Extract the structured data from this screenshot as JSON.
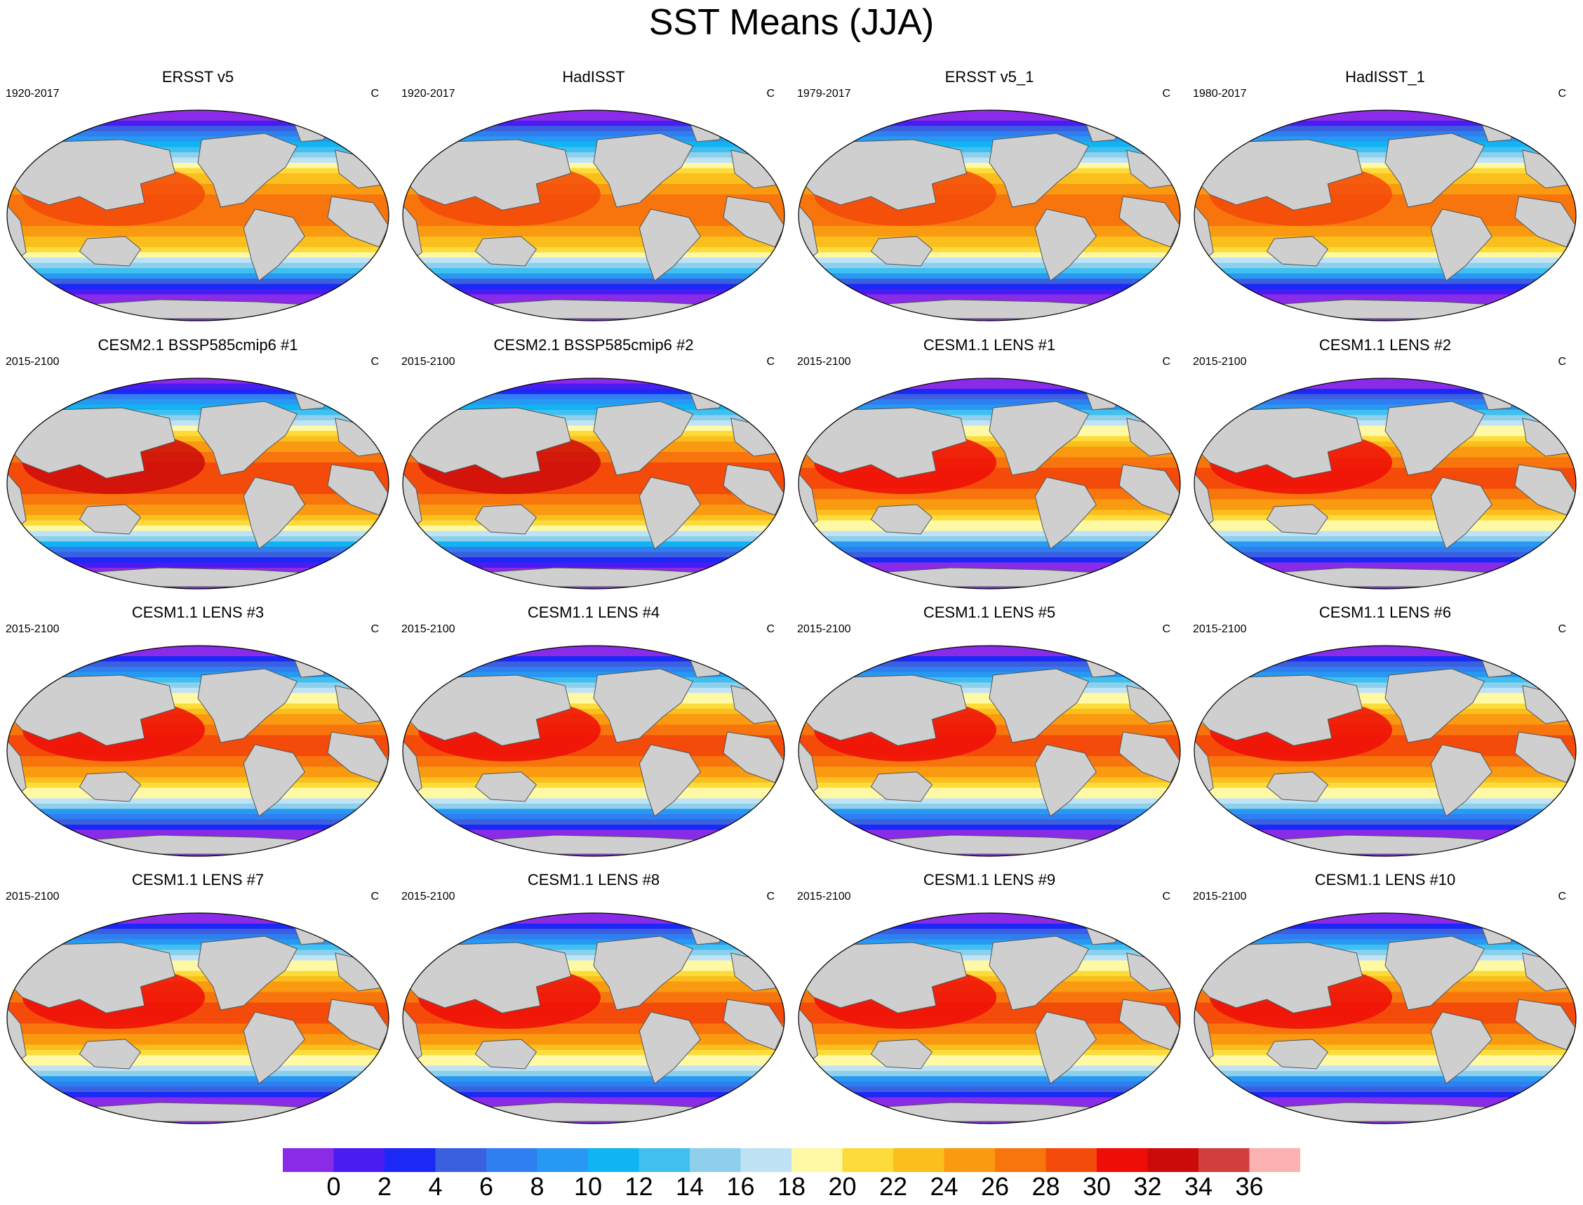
{
  "title": "SST Means (JJA)",
  "panels": [
    {
      "title": "ERSST v5",
      "period": "1920-2017",
      "units": "C",
      "warm": 0
    },
    {
      "title": "HadISST",
      "period": "1920-2017",
      "units": "C",
      "warm": 0
    },
    {
      "title": "ERSST v5_1",
      "period": "1979-2017",
      "units": "C",
      "warm": 0
    },
    {
      "title": "HadISST_1",
      "period": "1980-2017",
      "units": "C",
      "warm": 0
    },
    {
      "title": "CESM2.1 BSSP585cmip6 #1",
      "period": "2015-2100",
      "units": "C",
      "warm": 2
    },
    {
      "title": "CESM2.1 BSSP585cmip6 #2",
      "period": "2015-2100",
      "units": "C",
      "warm": 2
    },
    {
      "title": "CESM1.1 LENS #1",
      "period": "2015-2100",
      "units": "C",
      "warm": 1
    },
    {
      "title": "CESM1.1 LENS #2",
      "period": "2015-2100",
      "units": "C",
      "warm": 1
    },
    {
      "title": "CESM1.1 LENS #3",
      "period": "2015-2100",
      "units": "C",
      "warm": 1
    },
    {
      "title": "CESM1.1 LENS #4",
      "period": "2015-2100",
      "units": "C",
      "warm": 1
    },
    {
      "title": "CESM1.1 LENS #5",
      "period": "2015-2100",
      "units": "C",
      "warm": 1
    },
    {
      "title": "CESM1.1 LENS #6",
      "period": "2015-2100",
      "units": "C",
      "warm": 1
    },
    {
      "title": "CESM1.1 LENS #7",
      "period": "2015-2100",
      "units": "C",
      "warm": 1
    },
    {
      "title": "CESM1.1 LENS #8",
      "period": "2015-2100",
      "units": "C",
      "warm": 1
    },
    {
      "title": "CESM1.1 LENS #9",
      "period": "2015-2100",
      "units": "C",
      "warm": 1
    },
    {
      "title": "CESM1.1 LENS #10",
      "period": "2015-2100",
      "units": "C",
      "warm": 1
    }
  ],
  "colorbar": {
    "labels": [
      "0",
      "2",
      "4",
      "6",
      "8",
      "10",
      "12",
      "14",
      "16",
      "18",
      "20",
      "22",
      "24",
      "26",
      "28",
      "30",
      "32",
      "34",
      "36"
    ],
    "colors": [
      "#8a2be8",
      "#4a1cf2",
      "#1c28f5",
      "#3a60e0",
      "#2f7ff0",
      "#2899f3",
      "#10b4f2",
      "#40c0f0",
      "#8ed0ec",
      "#bfe2f4",
      "#fff9a6",
      "#fcdb3a",
      "#fbbf1d",
      "#f99a10",
      "#f7750c",
      "#f44a0a",
      "#ef0d08",
      "#cc0a0a",
      "#d23d3d",
      "#fdb2b2"
    ]
  }
}
